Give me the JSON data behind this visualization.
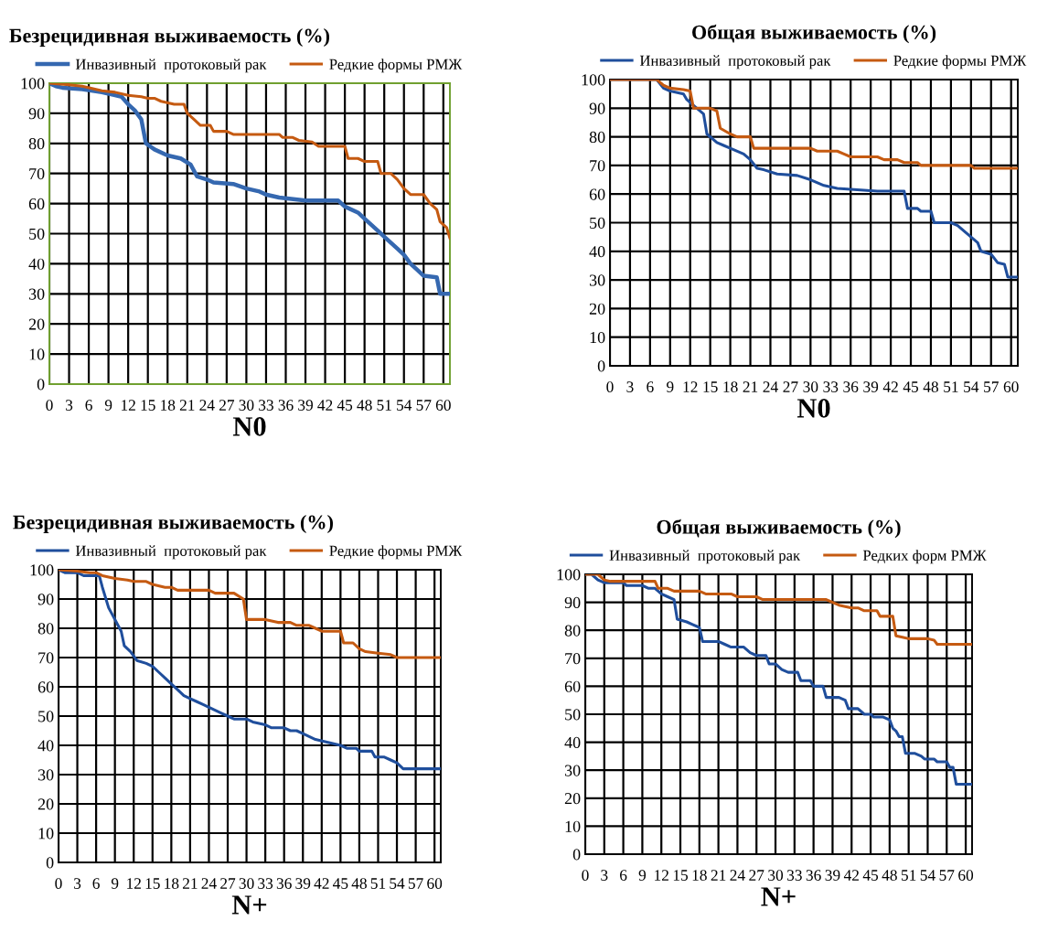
{
  "chart_data": [
    {
      "type": "line",
      "title": "Безрецидивная выживаемость (%)",
      "xlabel": "N0",
      "legend": "top",
      "grid": true,
      "marker": "none",
      "line_style": "solid",
      "xlim": [
        0,
        61
      ],
      "xticks": [
        0,
        3,
        6,
        9,
        12,
        15,
        18,
        21,
        24,
        27,
        30,
        33,
        36,
        39,
        42,
        45,
        48,
        51,
        54,
        57,
        60
      ],
      "ylim": [
        0,
        100
      ],
      "yticks": [
        0,
        10,
        20,
        30,
        40,
        50,
        60,
        70,
        80,
        90,
        100
      ],
      "series": [
        {
          "name": "Инвазивный  протоковый рак",
          "color": "#3568b0",
          "x": [
            0,
            1,
            2,
            5,
            8,
            10,
            11,
            12,
            13,
            14,
            14.7,
            16,
            18,
            20,
            21.5,
            22.5,
            24,
            25,
            28,
            30,
            32,
            33,
            35,
            39,
            44,
            45,
            47,
            48,
            49,
            50,
            51,
            52,
            53,
            54,
            55,
            56,
            57,
            59,
            59.5,
            61
          ],
          "values": [
            100,
            99,
            98.5,
            98,
            97,
            96,
            95.5,
            93,
            91,
            88,
            80,
            78,
            76,
            75,
            73,
            69,
            68,
            67,
            66.5,
            65,
            64,
            63,
            62,
            61,
            61,
            59,
            57,
            55,
            53,
            51,
            49,
            47,
            45,
            43,
            40,
            38,
            36,
            35.5,
            30,
            30
          ]
        },
        {
          "name": "Редкие формы РМЖ",
          "color": "#c55a11",
          "x": [
            0,
            3,
            5,
            8,
            10,
            12,
            14,
            15,
            16,
            17,
            19,
            20.5,
            21,
            22,
            23,
            24.5,
            25,
            27,
            28,
            30,
            35,
            35.5,
            37,
            38,
            40,
            41,
            45,
            45.5,
            47,
            48,
            50,
            50.5,
            52,
            53,
            54,
            55,
            57,
            58,
            59,
            59.5,
            60.5,
            61
          ],
          "values": [
            100,
            99.5,
            99,
            97.5,
            97,
            96,
            95.5,
            95,
            95,
            94,
            93,
            93,
            90,
            88,
            86,
            86,
            84,
            84,
            83,
            83,
            83,
            82,
            82,
            81,
            80.5,
            79,
            79,
            75,
            75,
            74,
            74,
            70,
            70,
            68,
            65,
            63,
            63,
            60,
            58,
            54,
            52,
            48.5
          ]
        }
      ]
    },
    {
      "type": "line",
      "title": "Общая выживаемость (%)",
      "xlabel": "N0",
      "legend": "top",
      "grid": true,
      "marker": "none",
      "line_style": "solid",
      "xlim": [
        0,
        61
      ],
      "xticks": [
        0,
        3,
        6,
        9,
        12,
        15,
        18,
        21,
        24,
        27,
        30,
        33,
        36,
        39,
        42,
        45,
        48,
        51,
        54,
        57,
        60
      ],
      "ylim": [
        0,
        100
      ],
      "yticks": [
        0,
        10,
        20,
        30,
        40,
        50,
        60,
        70,
        80,
        90,
        100
      ],
      "series": [
        {
          "name": "Инвазивный  протоковый рак",
          "color": "#1f4e9c",
          "x": [
            0,
            7,
            8,
            9,
            11,
            11.5,
            12,
            13,
            14,
            14.5,
            16,
            17,
            18,
            20,
            21,
            22,
            23,
            25,
            28,
            30,
            32,
            34,
            37,
            40,
            44,
            44.5,
            46,
            46.5,
            48,
            48.5,
            51,
            52,
            53,
            54,
            55,
            55.5,
            57,
            58,
            59,
            59.5,
            61
          ],
          "values": [
            100,
            100,
            97,
            96,
            95,
            93,
            92,
            90,
            88,
            81,
            78,
            77,
            76,
            74,
            72,
            69,
            68.5,
            67,
            66.5,
            65,
            63,
            62,
            61.5,
            61,
            61,
            55,
            55,
            54,
            54,
            50,
            50,
            49,
            47,
            45,
            43,
            40,
            39,
            36,
            35.5,
            31,
            31
          ]
        },
        {
          "name": "Редкие формы РМЖ",
          "color": "#c55a11",
          "x": [
            0,
            7,
            8,
            9,
            11,
            12,
            12.5,
            15,
            16,
            16.5,
            18,
            19,
            21,
            21.5,
            30,
            31,
            34,
            35,
            36,
            40,
            41,
            43,
            44,
            46,
            46.5,
            54,
            54.5,
            61
          ],
          "values": [
            100,
            100,
            98,
            97,
            96.5,
            96,
            90,
            90,
            89,
            83,
            81,
            80,
            80,
            76,
            76,
            75,
            75,
            74,
            73,
            73,
            72,
            72,
            71,
            71,
            70,
            70,
            69,
            69
          ]
        }
      ]
    },
    {
      "type": "line",
      "title": "Безрецидивная выживаемость (%)",
      "xlabel": "N+",
      "legend": "top",
      "grid": true,
      "marker": "none",
      "line_style": "solid",
      "xlim": [
        0,
        61
      ],
      "xticks": [
        0,
        3,
        6,
        9,
        12,
        15,
        18,
        21,
        24,
        27,
        30,
        33,
        36,
        39,
        42,
        45,
        48,
        51,
        54,
        57,
        60
      ],
      "ylim": [
        0,
        100
      ],
      "yticks": [
        0,
        10,
        20,
        30,
        40,
        50,
        60,
        70,
        80,
        90,
        100
      ],
      "series": [
        {
          "name": "Инвазивный  протоковый рак",
          "color": "#1f4e9c",
          "x": [
            0,
            1,
            3,
            4,
            6.5,
            7,
            8,
            9,
            10,
            10.5,
            11.5,
            12.5,
            14,
            15,
            16,
            17,
            18,
            19,
            20,
            21,
            22,
            23,
            24,
            25,
            26,
            27,
            28,
            30,
            31,
            33,
            34,
            36,
            37,
            38,
            39,
            40,
            41,
            43,
            45,
            46,
            47.5,
            48,
            50,
            50.5,
            52,
            53,
            54,
            55,
            61
          ],
          "values": [
            100,
            99,
            99,
            98,
            98,
            94,
            87,
            83,
            79,
            74,
            72,
            69,
            68,
            67,
            65,
            63,
            61,
            59,
            57,
            56,
            55,
            54,
            53,
            52,
            51,
            50,
            49,
            49,
            48,
            47,
            46,
            46,
            45,
            45,
            44,
            43,
            42,
            41,
            40,
            39,
            39,
            38,
            38,
            36,
            36,
            35,
            34,
            32,
            32
          ]
        },
        {
          "name": "Редкие формы РМЖ",
          "color": "#c55a11",
          "x": [
            0,
            3,
            5,
            6,
            7,
            9,
            11,
            12,
            14,
            15,
            17,
            18,
            19,
            24,
            25,
            28,
            29.5,
            30,
            33,
            35,
            37,
            38,
            40,
            41,
            42,
            45,
            45.5,
            47,
            48,
            49,
            51,
            53,
            54,
            61
          ],
          "values": [
            100,
            99.5,
            99,
            99,
            98,
            97,
            96.5,
            96,
            96,
            95,
            94,
            94,
            93,
            93,
            92,
            92,
            90,
            83,
            83,
            82,
            82,
            81,
            81,
            80,
            79,
            79,
            75,
            75,
            73,
            72,
            71.5,
            71,
            70,
            70
          ]
        }
      ]
    },
    {
      "type": "line",
      "title": "Общая выживаемость (%)",
      "xlabel": "N+",
      "legend": "top",
      "grid": true,
      "marker": "none",
      "line_style": "solid",
      "xlim": [
        0,
        61
      ],
      "xticks": [
        0,
        3,
        6,
        9,
        12,
        15,
        18,
        21,
        24,
        27,
        30,
        33,
        36,
        39,
        42,
        45,
        48,
        51,
        54,
        57,
        60
      ],
      "ylim": [
        0,
        100
      ],
      "yticks": [
        0,
        10,
        20,
        30,
        40,
        50,
        60,
        70,
        80,
        90,
        100
      ],
      "series": [
        {
          "name": "Инвазивный  протоковый рак",
          "color": "#1f4e9c",
          "x": [
            0,
            1,
            2,
            3,
            6,
            6.5,
            9,
            10,
            11,
            12,
            13,
            14,
            14.5,
            16,
            17,
            18,
            18.5,
            21,
            22,
            23,
            25,
            26,
            27,
            28.5,
            29,
            30,
            31,
            32,
            33.5,
            34,
            35.5,
            36,
            37.5,
            38,
            40,
            41,
            41.5,
            43,
            44,
            45,
            45.5,
            47,
            48,
            48.5,
            49,
            49.5,
            50,
            50.5,
            52,
            53,
            53.5,
            55,
            55.5,
            57,
            57.5,
            58,
            58.5,
            61
          ],
          "values": [
            100,
            100,
            98,
            97,
            97,
            96,
            96,
            95,
            95,
            93,
            92,
            91,
            84,
            83,
            82,
            81,
            76,
            76,
            75,
            74,
            74,
            72,
            71,
            71,
            68,
            68,
            66,
            65,
            65,
            62,
            62,
            60,
            60,
            56,
            56,
            55,
            52,
            52,
            50,
            50,
            49,
            49,
            48,
            45,
            44,
            42,
            42,
            36,
            36,
            35,
            34,
            34,
            33,
            33,
            31,
            31,
            25,
            25
          ]
        },
        {
          "name": "Редких форм РМЖ",
          "color": "#c55a11",
          "x": [
            0,
            2,
            3,
            4,
            9,
            11,
            11.5,
            13,
            14,
            18,
            19,
            23,
            24,
            27,
            28,
            38,
            39,
            40,
            42,
            43,
            44,
            46,
            46.5,
            48.5,
            49,
            50,
            51,
            54,
            55,
            55.5,
            61
          ],
          "values": [
            100,
            100,
            98,
            97.5,
            97.5,
            97.5,
            95,
            95,
            94,
            94,
            93,
            93,
            92,
            92,
            91,
            91,
            90,
            89,
            88,
            88,
            87,
            87,
            85,
            85,
            78,
            77.5,
            77,
            77,
            76.5,
            75,
            75
          ]
        }
      ]
    }
  ]
}
